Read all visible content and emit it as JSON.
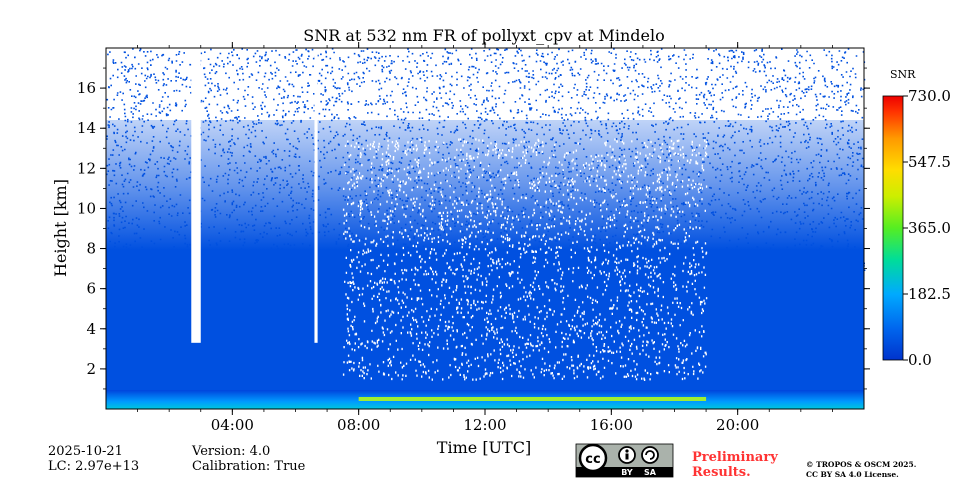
{
  "chart_data": {
    "type": "heatmap",
    "title": "SNR at 532 nm FR of pollyxt_cpv at Mindelo",
    "xlabel": "Time [UTC]",
    "ylabel": "Height [km]",
    "x_ticks": [
      "04:00",
      "08:00",
      "12:00",
      "16:00",
      "20:00"
    ],
    "x_tick_hours": [
      4,
      8,
      12,
      16,
      20
    ],
    "xlim_hours": [
      0,
      24
    ],
    "y_ticks": [
      2,
      4,
      6,
      8,
      10,
      12,
      14,
      16
    ],
    "ylim": [
      0,
      18
    ],
    "colorbar": {
      "label": "SNR",
      "ticks": [
        "0.0",
        "182.5",
        "365.0",
        "547.5",
        "730.0"
      ],
      "range": [
        0,
        730
      ],
      "colormap": [
        "#0033cc",
        "#0066ee",
        "#00aaff",
        "#00dd99",
        "#55ee22",
        "#ccee00",
        "#ffdd00",
        "#ff9900",
        "#ff3300",
        "#ee0000"
      ]
    },
    "data_gaps_hours": [
      [
        2.7,
        3.0
      ],
      [
        6.6,
        6.7
      ]
    ],
    "surface_layer_km": 0.8,
    "high_snr_layer": {
      "start_hour": 8.0,
      "end_hour": 19.0,
      "height_km": 0.5
    }
  },
  "footer": {
    "date": "2025-10-21",
    "lc": "LC: 2.97e+13",
    "version": "Version: 4.0",
    "calibration": "Calibration: True",
    "preliminary_line1": "Preliminary",
    "preliminary_line2": "Results.",
    "copyright_line1": "© TROPOS & OSCM 2025.",
    "copyright_line2": "CC BY SA 4.0 License.",
    "license_badge": {
      "cc": "cc",
      "by": "BY",
      "sa": "SA"
    }
  }
}
